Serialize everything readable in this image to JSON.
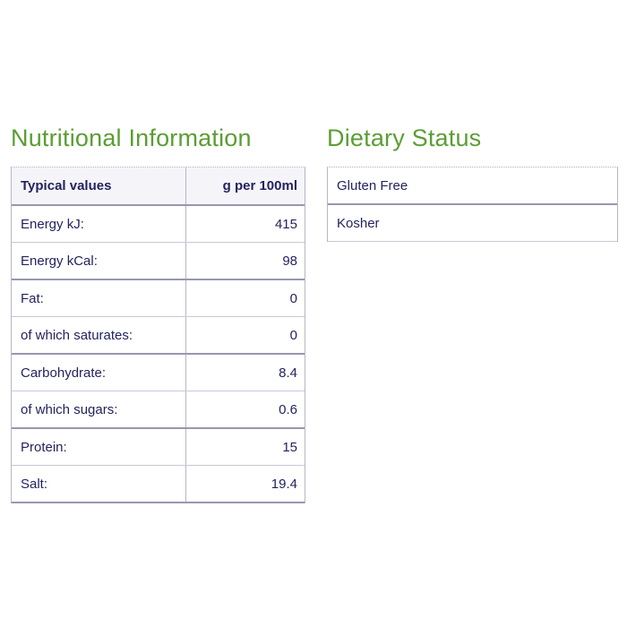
{
  "colors": {
    "heading_green": "#5a9e33",
    "text_navy": "#23235f",
    "border_light": "#c9c9d8",
    "border_dark": "#9797b1",
    "header_row_bg": "#f5f5f9",
    "page_bg": "#ffffff"
  },
  "nutrition": {
    "title": "Nutritional Information",
    "header": {
      "label": "Typical values",
      "unit": "g per 100ml"
    },
    "rows": [
      {
        "label": "Energy kJ:",
        "value": "415"
      },
      {
        "label": "Energy kCal:",
        "value": "98"
      },
      {
        "label": "Fat:",
        "value": "0"
      },
      {
        "label": "of which saturates:",
        "value": "0"
      },
      {
        "label": "Carbohydrate:",
        "value": "8.4"
      },
      {
        "label": "of which sugars:",
        "value": "0.6"
      },
      {
        "label": "Protein:",
        "value": "15"
      },
      {
        "label": "Salt:",
        "value": "19.4"
      }
    ]
  },
  "dietary": {
    "title": "Dietary Status",
    "items": [
      {
        "label": "Gluten Free"
      },
      {
        "label": "Kosher"
      }
    ]
  }
}
